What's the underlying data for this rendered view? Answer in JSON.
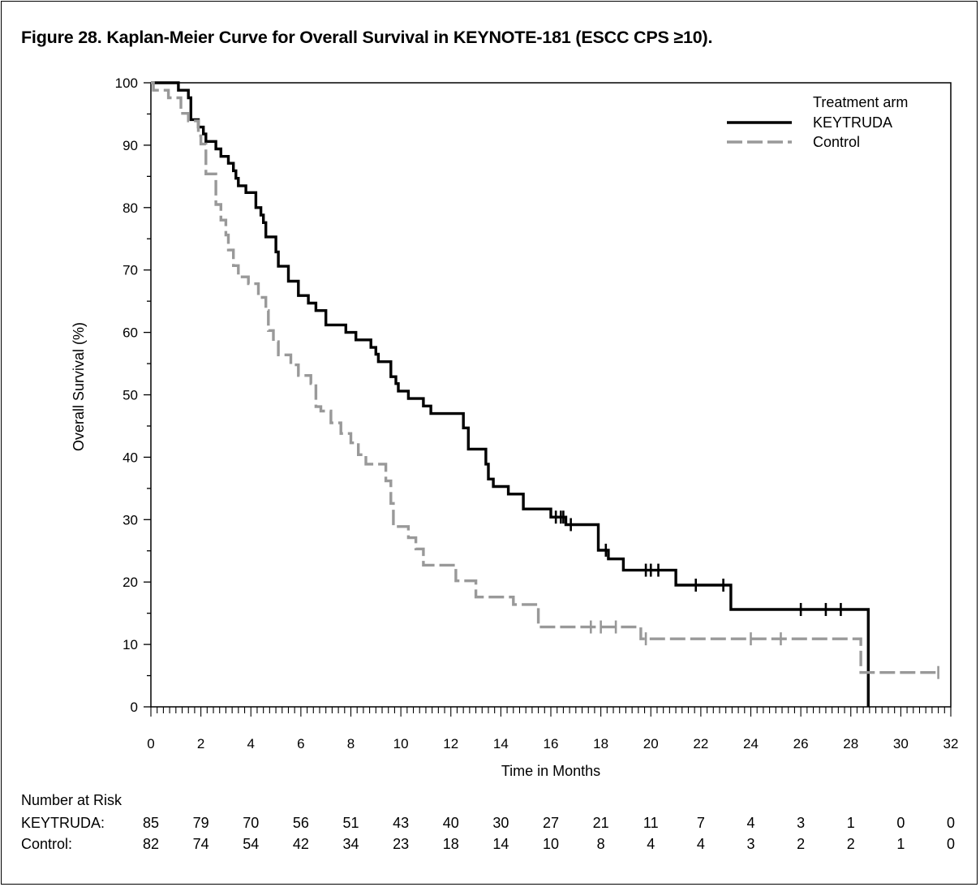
{
  "figure": {
    "title": "Figure 28. Kaplan-Meier Curve for Overall Survival in KEYNOTE-181 (ESCC CPS ≥10)."
  },
  "chart_data": {
    "type": "line",
    "step": true,
    "xlabel": "Time in Months",
    "ylabel": "Overall Survival (%)",
    "xlim": [
      0,
      32
    ],
    "ylim": [
      0,
      100
    ],
    "x_ticks": [
      0,
      2,
      4,
      6,
      8,
      10,
      12,
      14,
      16,
      18,
      20,
      22,
      24,
      26,
      28,
      30,
      32
    ],
    "x_tick_labels": [
      "0",
      "2",
      "4",
      "6",
      "8",
      "10",
      "12",
      "14",
      "16",
      "18",
      "20",
      "22",
      "24",
      "26",
      "28",
      "30",
      "32"
    ],
    "y_ticks": [
      0,
      10,
      20,
      30,
      40,
      50,
      60,
      70,
      80,
      90,
      100
    ],
    "y_tick_labels": [
      "0",
      "10",
      "20",
      "30",
      "40",
      "50",
      "60",
      "70",
      "80",
      "90",
      "100"
    ],
    "legend": {
      "title": "Treatment arm",
      "position": "top-right",
      "entries": [
        "KEYTRUDA",
        "Control"
      ]
    },
    "series": [
      {
        "name": "KEYTRUDA",
        "color": "#000000",
        "dash": "solid",
        "points": [
          [
            0,
            100
          ],
          [
            1.1,
            100
          ],
          [
            1.1,
            98.8
          ],
          [
            1.5,
            98.8
          ],
          [
            1.5,
            97.6
          ],
          [
            1.6,
            97.6
          ],
          [
            1.6,
            94.1
          ],
          [
            1.9,
            94.1
          ],
          [
            1.9,
            92.9
          ],
          [
            2.1,
            92.9
          ],
          [
            2.1,
            91.8
          ],
          [
            2.2,
            91.8
          ],
          [
            2.2,
            90.6
          ],
          [
            2.6,
            90.6
          ],
          [
            2.6,
            89.4
          ],
          [
            2.8,
            89.4
          ],
          [
            2.8,
            88.2
          ],
          [
            3.1,
            88.2
          ],
          [
            3.1,
            87.1
          ],
          [
            3.3,
            87.1
          ],
          [
            3.3,
            85.9
          ],
          [
            3.4,
            85.9
          ],
          [
            3.4,
            84.7
          ],
          [
            3.5,
            84.7
          ],
          [
            3.5,
            83.5
          ],
          [
            3.8,
            83.5
          ],
          [
            3.8,
            82.4
          ],
          [
            4.2,
            82.4
          ],
          [
            4.2,
            80.0
          ],
          [
            4.4,
            80.0
          ],
          [
            4.4,
            78.8
          ],
          [
            4.5,
            78.8
          ],
          [
            4.5,
            77.6
          ],
          [
            4.6,
            77.6
          ],
          [
            4.6,
            75.3
          ],
          [
            5.0,
            75.3
          ],
          [
            5.0,
            72.9
          ],
          [
            5.1,
            72.9
          ],
          [
            5.1,
            70.6
          ],
          [
            5.5,
            70.6
          ],
          [
            5.5,
            68.2
          ],
          [
            5.9,
            68.2
          ],
          [
            5.9,
            65.9
          ],
          [
            6.3,
            65.9
          ],
          [
            6.3,
            64.7
          ],
          [
            6.6,
            64.7
          ],
          [
            6.6,
            63.5
          ],
          [
            7.0,
            63.5
          ],
          [
            7.0,
            61.2
          ],
          [
            7.8,
            61.2
          ],
          [
            7.8,
            60.0
          ],
          [
            8.2,
            60.0
          ],
          [
            8.2,
            58.8
          ],
          [
            8.8,
            58.8
          ],
          [
            8.8,
            57.6
          ],
          [
            9.0,
            57.6
          ],
          [
            9.0,
            56.5
          ],
          [
            9.1,
            56.5
          ],
          [
            9.1,
            55.3
          ],
          [
            9.6,
            55.3
          ],
          [
            9.6,
            52.9
          ],
          [
            9.8,
            52.9
          ],
          [
            9.8,
            51.8
          ],
          [
            9.9,
            51.8
          ],
          [
            9.9,
            50.6
          ],
          [
            10.3,
            50.6
          ],
          [
            10.3,
            49.4
          ],
          [
            10.9,
            49.4
          ],
          [
            10.9,
            48.2
          ],
          [
            11.2,
            48.2
          ],
          [
            11.2,
            47.0
          ],
          [
            12.5,
            47.0
          ],
          [
            12.5,
            44.7
          ],
          [
            12.7,
            44.7
          ],
          [
            12.7,
            41.3
          ],
          [
            13.4,
            41.3
          ],
          [
            13.4,
            38.9
          ],
          [
            13.5,
            38.9
          ],
          [
            13.5,
            36.5
          ],
          [
            13.7,
            36.5
          ],
          [
            13.7,
            35.3
          ],
          [
            14.3,
            35.3
          ],
          [
            14.3,
            34.1
          ],
          [
            14.9,
            34.1
          ],
          [
            14.9,
            31.7
          ],
          [
            16.0,
            31.7
          ],
          [
            16.0,
            30.4
          ],
          [
            16.6,
            30.4
          ],
          [
            16.6,
            29.2
          ],
          [
            17.9,
            29.2
          ],
          [
            17.9,
            25.1
          ],
          [
            18.3,
            25.1
          ],
          [
            18.3,
            23.7
          ],
          [
            18.9,
            23.7
          ],
          [
            18.9,
            21.9
          ],
          [
            21.0,
            21.9
          ],
          [
            21.0,
            19.5
          ],
          [
            23.2,
            19.5
          ],
          [
            23.2,
            15.6
          ],
          [
            28.7,
            15.6
          ],
          [
            28.7,
            0
          ]
        ],
        "censor_x": [
          16.2,
          16.4,
          16.5,
          16.8,
          18.2,
          19.8,
          20.0,
          20.3,
          21.8,
          22.9,
          26.0,
          27.0,
          27.6
        ]
      },
      {
        "name": "Control",
        "color": "#999999",
        "dash": "dashed",
        "points": [
          [
            0,
            100
          ],
          [
            0.1,
            100
          ],
          [
            0.1,
            98.8
          ],
          [
            0.7,
            98.8
          ],
          [
            0.7,
            97.6
          ],
          [
            1.2,
            97.6
          ],
          [
            1.2,
            95.1
          ],
          [
            1.5,
            95.1
          ],
          [
            1.5,
            93.9
          ],
          [
            1.9,
            93.9
          ],
          [
            1.9,
            91.5
          ],
          [
            2.0,
            91.5
          ],
          [
            2.0,
            90.2
          ],
          [
            2.2,
            90.2
          ],
          [
            2.2,
            85.4
          ],
          [
            2.6,
            85.4
          ],
          [
            2.6,
            80.5
          ],
          [
            2.8,
            80.5
          ],
          [
            2.8,
            78.0
          ],
          [
            3.0,
            78.0
          ],
          [
            3.0,
            75.6
          ],
          [
            3.1,
            75.6
          ],
          [
            3.1,
            73.2
          ],
          [
            3.3,
            73.2
          ],
          [
            3.3,
            70.7
          ],
          [
            3.5,
            70.7
          ],
          [
            3.5,
            68.9
          ],
          [
            3.9,
            68.9
          ],
          [
            3.9,
            67.8
          ],
          [
            4.3,
            67.8
          ],
          [
            4.3,
            65.6
          ],
          [
            4.6,
            65.6
          ],
          [
            4.6,
            63.5
          ],
          [
            4.7,
            63.5
          ],
          [
            4.7,
            60.3
          ],
          [
            4.9,
            60.3
          ],
          [
            4.9,
            58.5
          ],
          [
            5.1,
            58.5
          ],
          [
            5.1,
            56.4
          ],
          [
            5.6,
            56.4
          ],
          [
            5.6,
            54.8
          ],
          [
            5.9,
            54.8
          ],
          [
            5.9,
            53.1
          ],
          [
            6.4,
            53.1
          ],
          [
            6.4,
            51.8
          ],
          [
            6.6,
            51.8
          ],
          [
            6.6,
            48.1
          ],
          [
            6.8,
            48.1
          ],
          [
            6.8,
            47.4
          ],
          [
            7.2,
            47.4
          ],
          [
            7.2,
            45.5
          ],
          [
            7.6,
            45.5
          ],
          [
            7.6,
            43.8
          ],
          [
            8.0,
            43.8
          ],
          [
            8.0,
            42.3
          ],
          [
            8.3,
            42.3
          ],
          [
            8.3,
            40.4
          ],
          [
            8.6,
            40.4
          ],
          [
            8.6,
            38.9
          ],
          [
            9.4,
            38.9
          ],
          [
            9.4,
            36.2
          ],
          [
            9.6,
            36.2
          ],
          [
            9.6,
            32.6
          ],
          [
            9.7,
            32.6
          ],
          [
            9.7,
            28.9
          ],
          [
            10.3,
            28.9
          ],
          [
            10.3,
            27.1
          ],
          [
            10.6,
            27.1
          ],
          [
            10.6,
            25.3
          ],
          [
            10.9,
            25.3
          ],
          [
            10.9,
            22.7
          ],
          [
            12.2,
            22.7
          ],
          [
            12.2,
            20.2
          ],
          [
            13.0,
            20.2
          ],
          [
            13.0,
            17.6
          ],
          [
            14.5,
            17.6
          ],
          [
            14.5,
            16.4
          ],
          [
            15.5,
            16.4
          ],
          [
            15.5,
            12.8
          ],
          [
            19.6,
            12.8
          ],
          [
            19.6,
            10.9
          ],
          [
            28.4,
            10.9
          ],
          [
            28.4,
            5.5
          ],
          [
            31.5,
            5.5
          ]
        ],
        "censor_x": [
          17.6,
          18.0,
          18.6,
          19.8,
          24.0,
          25.2,
          31.5
        ]
      }
    ],
    "number_at_risk": {
      "title": "Number at Risk",
      "times": [
        0,
        2,
        4,
        6,
        8,
        10,
        12,
        14,
        16,
        18,
        20,
        22,
        24,
        26,
        28,
        30,
        32
      ],
      "rows": [
        {
          "label": "KEYTRUDA:",
          "values": [
            "85",
            "79",
            "70",
            "56",
            "51",
            "43",
            "40",
            "30",
            "27",
            "21",
            "11",
            "7",
            "4",
            "3",
            "1",
            "0",
            "0"
          ]
        },
        {
          "label": "Control:",
          "values": [
            "82",
            "74",
            "54",
            "42",
            "34",
            "23",
            "18",
            "14",
            "10",
            "8",
            "4",
            "4",
            "3",
            "2",
            "2",
            "1",
            "0"
          ]
        }
      ]
    }
  }
}
